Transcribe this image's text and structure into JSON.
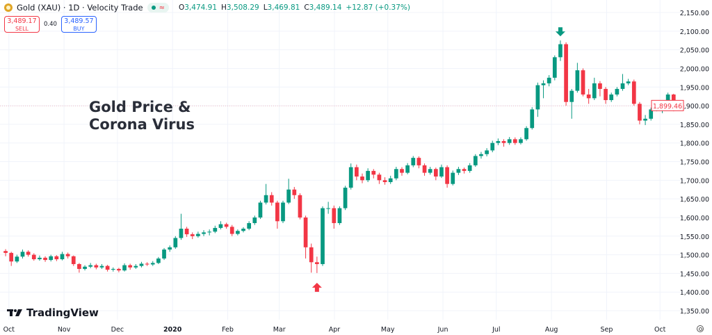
{
  "header": {
    "symbol_title": "Gold (XAU) · 1D · Velocity Trade",
    "market_status": "●",
    "approx_icon": "≈",
    "ohlc": {
      "o_label": "O",
      "o": "3,474.91",
      "h_label": "H",
      "h": "3,508.29",
      "l_label": "L",
      "l": "3,469.81",
      "c_label": "C",
      "c": "3,489.14",
      "change": "+12.87 (+0.37%)"
    }
  },
  "trade": {
    "sell_price": "3,489.17",
    "sell_label": "SELL",
    "spread": "0.40",
    "buy_price": "3,489.57",
    "buy_label": "BUY"
  },
  "annotation": {
    "line1": "Gold Price &",
    "line2": "Corona Virus"
  },
  "branding": {
    "name": "TradingView"
  },
  "colors": {
    "up": "#089981",
    "down": "#f23645",
    "grid": "#f0f3fa",
    "buy": "#2962ff",
    "logo": "#e0a526"
  },
  "chart_data": {
    "type": "candlestick",
    "interval": "1D",
    "x_range": [
      "2019-09-26",
      "2020-10-15"
    ],
    "ylim": [
      1330,
      2165
    ],
    "grid": true,
    "y_ticks": [
      1350,
      1400,
      1450,
      1500,
      1550,
      1600,
      1650,
      1700,
      1750,
      1800,
      1850,
      1900,
      1950,
      2000,
      2050,
      2100,
      2150
    ],
    "y_tick_labels": [
      "1,350.00",
      "1,400.00",
      "1,450.00",
      "1,500.00",
      "1,550.00",
      "1,600.00",
      "1,650.00",
      "1,700.00",
      "1,750.00",
      "1,800.00",
      "1,850.00",
      "1,900.00",
      "1,950.00",
      "2,000.00",
      "2,050.00",
      "2,100.00",
      "2,150.00"
    ],
    "x_ticks": [
      {
        "label": "Oct",
        "date": "2019-10-01"
      },
      {
        "label": "Nov",
        "date": "2019-11-01"
      },
      {
        "label": "Dec",
        "date": "2019-12-01"
      },
      {
        "label": "2020",
        "date": "2020-01-01",
        "bold": true
      },
      {
        "label": "Feb",
        "date": "2020-02-01"
      },
      {
        "label": "Mar",
        "date": "2020-03-01"
      },
      {
        "label": "Apr",
        "date": "2020-04-01"
      },
      {
        "label": "May",
        "date": "2020-05-01"
      },
      {
        "label": "Jun",
        "date": "2020-06-01"
      },
      {
        "label": "Jul",
        "date": "2020-07-01"
      },
      {
        "label": "Aug",
        "date": "2020-08-01"
      },
      {
        "label": "Sep",
        "date": "2020-09-01"
      },
      {
        "label": "Oct",
        "date": "2020-10-01"
      }
    ],
    "last_price": 1899.46,
    "last_price_label": "1,899.46",
    "markers": [
      {
        "type": "arrow-up",
        "color": "#f23645",
        "candle": 55
      },
      {
        "type": "arrow-down",
        "color": "#089981",
        "candle": 98
      }
    ],
    "ohlc": [
      [
        1510,
        1515,
        1496,
        1505
      ],
      [
        1505,
        1508,
        1470,
        1482
      ],
      [
        1482,
        1500,
        1478,
        1495
      ],
      [
        1495,
        1514,
        1490,
        1508
      ],
      [
        1508,
        1512,
        1495,
        1500
      ],
      [
        1500,
        1504,
        1484,
        1488
      ],
      [
        1488,
        1498,
        1484,
        1492
      ],
      [
        1492,
        1496,
        1481,
        1486
      ],
      [
        1486,
        1500,
        1482,
        1496
      ],
      [
        1496,
        1499,
        1483,
        1488
      ],
      [
        1488,
        1508,
        1485,
        1502
      ],
      [
        1502,
        1506,
        1490,
        1496
      ],
      [
        1496,
        1498,
        1470,
        1475
      ],
      [
        1475,
        1478,
        1452,
        1462
      ],
      [
        1462,
        1472,
        1458,
        1468
      ],
      [
        1468,
        1478,
        1464,
        1472
      ],
      [
        1472,
        1476,
        1461,
        1466
      ],
      [
        1466,
        1475,
        1462,
        1470
      ],
      [
        1470,
        1473,
        1455,
        1460
      ],
      [
        1460,
        1466,
        1455,
        1462
      ],
      [
        1462,
        1465,
        1453,
        1458
      ],
      [
        1458,
        1477,
        1455,
        1472
      ],
      [
        1472,
        1476,
        1460,
        1466
      ],
      [
        1466,
        1475,
        1462,
        1470
      ],
      [
        1470,
        1481,
        1466,
        1476
      ],
      [
        1476,
        1480,
        1470,
        1474
      ],
      [
        1474,
        1483,
        1470,
        1478
      ],
      [
        1478,
        1494,
        1475,
        1490
      ],
      [
        1490,
        1518,
        1486,
        1514
      ],
      [
        1514,
        1525,
        1508,
        1520
      ],
      [
        1520,
        1550,
        1516,
        1545
      ],
      [
        1545,
        1610,
        1540,
        1570
      ],
      [
        1570,
        1575,
        1548,
        1555
      ],
      [
        1555,
        1560,
        1542,
        1550
      ],
      [
        1550,
        1562,
        1546,
        1556
      ],
      [
        1556,
        1566,
        1550,
        1560
      ],
      [
        1560,
        1568,
        1552,
        1562
      ],
      [
        1562,
        1578,
        1558,
        1572
      ],
      [
        1572,
        1590,
        1568,
        1582
      ],
      [
        1582,
        1586,
        1570,
        1575
      ],
      [
        1575,
        1580,
        1550,
        1556
      ],
      [
        1556,
        1568,
        1552,
        1564
      ],
      [
        1564,
        1574,
        1560,
        1570
      ],
      [
        1570,
        1590,
        1566,
        1585
      ],
      [
        1585,
        1605,
        1580,
        1600
      ],
      [
        1600,
        1645,
        1596,
        1640
      ],
      [
        1640,
        1690,
        1635,
        1660
      ],
      [
        1660,
        1668,
        1632,
        1640
      ],
      [
        1640,
        1645,
        1570,
        1590
      ],
      [
        1590,
        1645,
        1585,
        1640
      ],
      [
        1640,
        1704,
        1636,
        1675
      ],
      [
        1675,
        1682,
        1650,
        1660
      ],
      [
        1660,
        1665,
        1595,
        1600
      ],
      [
        1600,
        1605,
        1490,
        1520
      ],
      [
        1520,
        1530,
        1452,
        1480
      ],
      [
        1480,
        1495,
        1451,
        1475
      ],
      [
        1475,
        1630,
        1470,
        1625
      ],
      [
        1625,
        1642,
        1610,
        1625
      ],
      [
        1625,
        1632,
        1570,
        1585
      ],
      [
        1585,
        1630,
        1580,
        1625
      ],
      [
        1625,
        1685,
        1620,
        1680
      ],
      [
        1680,
        1745,
        1675,
        1735
      ],
      [
        1735,
        1742,
        1700,
        1710
      ],
      [
        1710,
        1718,
        1692,
        1700
      ],
      [
        1700,
        1732,
        1695,
        1725
      ],
      [
        1725,
        1730,
        1705,
        1715
      ],
      [
        1715,
        1720,
        1690,
        1700
      ],
      [
        1700,
        1708,
        1688,
        1695
      ],
      [
        1695,
        1712,
        1690,
        1705
      ],
      [
        1705,
        1736,
        1700,
        1730
      ],
      [
        1730,
        1735,
        1712,
        1720
      ],
      [
        1720,
        1746,
        1716,
        1740
      ],
      [
        1740,
        1765,
        1735,
        1760
      ],
      [
        1760,
        1764,
        1732,
        1740
      ],
      [
        1740,
        1745,
        1712,
        1720
      ],
      [
        1720,
        1736,
        1715,
        1730
      ],
      [
        1730,
        1734,
        1700,
        1710
      ],
      [
        1710,
        1742,
        1706,
        1735
      ],
      [
        1735,
        1740,
        1680,
        1690
      ],
      [
        1690,
        1726,
        1686,
        1720
      ],
      [
        1720,
        1736,
        1714,
        1730
      ],
      [
        1730,
        1734,
        1718,
        1725
      ],
      [
        1725,
        1746,
        1720,
        1740
      ],
      [
        1740,
        1770,
        1736,
        1765
      ],
      [
        1765,
        1776,
        1758,
        1770
      ],
      [
        1770,
        1786,
        1764,
        1780
      ],
      [
        1780,
        1806,
        1775,
        1800
      ],
      [
        1800,
        1812,
        1794,
        1805
      ],
      [
        1805,
        1810,
        1790,
        1800
      ],
      [
        1800,
        1816,
        1795,
        1810
      ],
      [
        1810,
        1815,
        1795,
        1800
      ],
      [
        1800,
        1815,
        1796,
        1810
      ],
      [
        1810,
        1845,
        1806,
        1840
      ],
      [
        1840,
        1896,
        1836,
        1890
      ],
      [
        1890,
        1962,
        1870,
        1955
      ],
      [
        1955,
        1968,
        1920,
        1960
      ],
      [
        1960,
        1982,
        1952,
        1975
      ],
      [
        1975,
        2035,
        1968,
        2030
      ],
      [
        2030,
        2075,
        2020,
        2065
      ],
      [
        2065,
        2070,
        1900,
        1910
      ],
      [
        1910,
        1945,
        1865,
        1940
      ],
      [
        1940,
        2015,
        1935,
        1995
      ],
      [
        1995,
        2000,
        1925,
        1930
      ],
      [
        1930,
        1945,
        1905,
        1920
      ],
      [
        1920,
        1975,
        1915,
        1960
      ],
      [
        1960,
        1966,
        1925,
        1945
      ],
      [
        1945,
        1950,
        1905,
        1915
      ],
      [
        1915,
        1935,
        1910,
        1930
      ],
      [
        1930,
        1950,
        1925,
        1945
      ],
      [
        1945,
        1985,
        1940,
        1960
      ],
      [
        1960,
        1972,
        1955,
        1965
      ],
      [
        1965,
        1970,
        1900,
        1905
      ],
      [
        1905,
        1910,
        1850,
        1860
      ],
      [
        1860,
        1875,
        1848,
        1865
      ],
      [
        1865,
        1895,
        1860,
        1890
      ],
      [
        1890,
        1912,
        1885,
        1900
      ],
      [
        1900,
        1910,
        1880,
        1900
      ],
      [
        1900,
        1935,
        1895,
        1930
      ],
      [
        1930,
        1932,
        1885,
        1895
      ],
      [
        1895,
        1905,
        1890,
        1899
      ]
    ]
  }
}
